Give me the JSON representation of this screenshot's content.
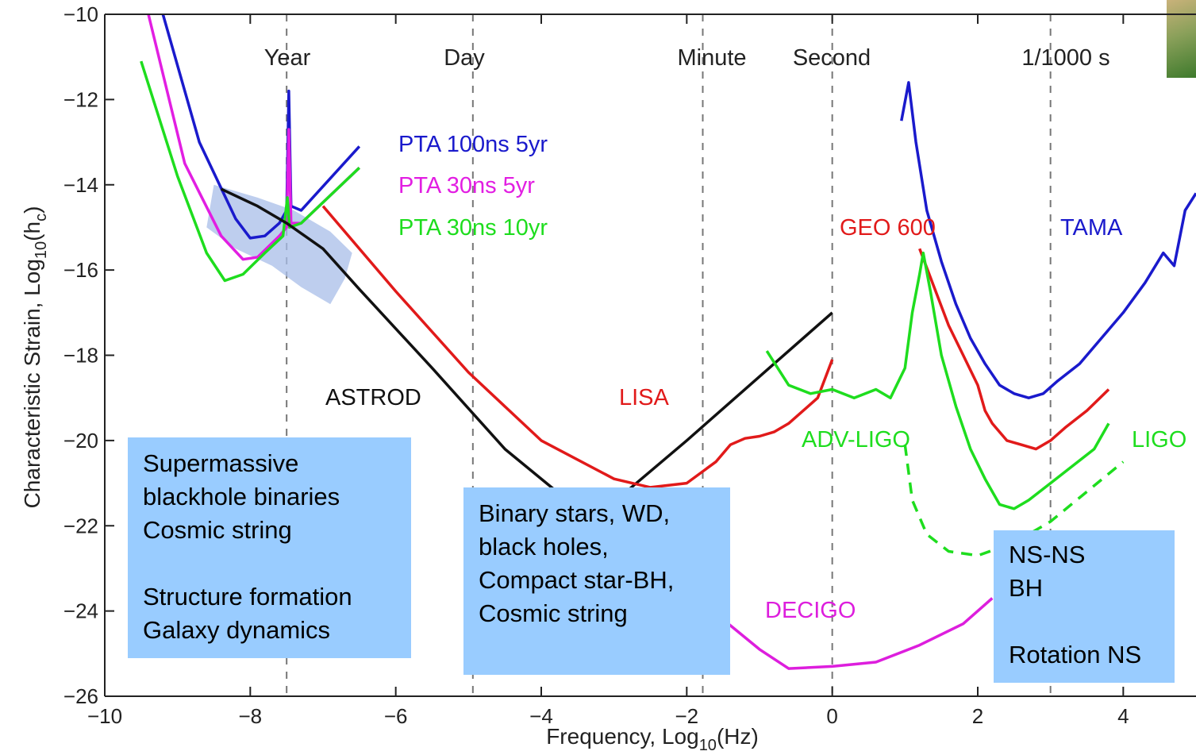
{
  "chart_data": {
    "type": "line",
    "xlabel": "Frequency, Log10(Hz)",
    "ylabel": "Characteristic Strain, Log10(hc)",
    "xlim": [
      -10,
      5
    ],
    "ylim": [
      -26,
      -10
    ],
    "x_ticks": [
      -10,
      -8,
      -6,
      -4,
      -2,
      0,
      2,
      4
    ],
    "y_ticks": [
      -26,
      -24,
      -22,
      -20,
      -18,
      -16,
      -14,
      -12,
      -10
    ],
    "time_markers": [
      {
        "label": "Year",
        "x": -7.5
      },
      {
        "label": "Day",
        "x": -4.94
      },
      {
        "label": "Minute",
        "x": -1.78
      },
      {
        "label": "Second",
        "x": 0
      },
      {
        "label": "1/1000 s",
        "x": 3
      }
    ],
    "series": [
      {
        "name": "PTA 100ns 5yr",
        "color": "#1a1acc",
        "points": [
          [
            -9.2,
            -10
          ],
          [
            -8.7,
            -13.0
          ],
          [
            -8.2,
            -14.8
          ],
          [
            -8.0,
            -15.25
          ],
          [
            -7.8,
            -15.2
          ],
          [
            -7.6,
            -14.9
          ],
          [
            -7.5,
            -14.6
          ],
          [
            -7.47,
            -11.8
          ],
          [
            -7.44,
            -14.5
          ],
          [
            -7.3,
            -14.6
          ],
          [
            -6.5,
            -13.1
          ]
        ]
      },
      {
        "name": "PTA 30ns 5yr",
        "color": "#e21ee2",
        "points": [
          [
            -9.4,
            -10
          ],
          [
            -8.9,
            -13.5
          ],
          [
            -8.4,
            -15.2
          ],
          [
            -8.1,
            -15.75
          ],
          [
            -7.9,
            -15.7
          ],
          [
            -7.6,
            -15.2
          ],
          [
            -7.5,
            -15.0
          ],
          [
            -7.47,
            -12.7
          ],
          [
            -7.44,
            -14.9
          ],
          [
            -7.3,
            -14.9
          ],
          [
            -6.5,
            -13.6
          ]
        ]
      },
      {
        "name": "PTA 30ns 10yr",
        "color": "#1edd1e",
        "points": [
          [
            -9.5,
            -11.1
          ],
          [
            -9.0,
            -13.8
          ],
          [
            -8.6,
            -15.6
          ],
          [
            -8.35,
            -16.25
          ],
          [
            -8.1,
            -16.1
          ],
          [
            -7.8,
            -15.6
          ],
          [
            -7.55,
            -15.2
          ],
          [
            -7.49,
            -14.3
          ],
          [
            -7.46,
            -15.0
          ],
          [
            -7.3,
            -14.9
          ],
          [
            -6.5,
            -13.6
          ]
        ]
      },
      {
        "name": "ASTROD",
        "color": "#111111",
        "points": [
          [
            -8.4,
            -14.1
          ],
          [
            -7.9,
            -14.5
          ],
          [
            -7.5,
            -14.9
          ],
          [
            -7.0,
            -15.5
          ],
          [
            -6.5,
            -16.45
          ],
          [
            -5.5,
            -18.3
          ],
          [
            -4.5,
            -20.2
          ],
          [
            -3.5,
            -21.6
          ],
          [
            -3.2,
            -21.9
          ],
          [
            -2.9,
            -21.3
          ],
          [
            -2.0,
            -20.0
          ],
          [
            -1.0,
            -18.5
          ],
          [
            0,
            -17.0
          ]
        ]
      },
      {
        "name": "LISA",
        "color": "#e11a1a",
        "points": [
          [
            -7.0,
            -14.5
          ],
          [
            -6.0,
            -16.5
          ],
          [
            -5.0,
            -18.4
          ],
          [
            -4.0,
            -20.0
          ],
          [
            -3.0,
            -20.9
          ],
          [
            -2.5,
            -21.1
          ],
          [
            -2.0,
            -21.0
          ],
          [
            -1.6,
            -20.5
          ],
          [
            -1.4,
            -20.1
          ],
          [
            -1.2,
            -19.95
          ],
          [
            -1.0,
            -19.9
          ],
          [
            -0.8,
            -19.8
          ],
          [
            -0.6,
            -19.6
          ],
          [
            -0.4,
            -19.3
          ],
          [
            -0.2,
            -19.0
          ],
          [
            0,
            -18.1
          ]
        ]
      },
      {
        "name": "DECIGO",
        "color": "#dd1edd",
        "points": [
          [
            -1.5,
            -24.2
          ],
          [
            -1.0,
            -24.9
          ],
          [
            -0.6,
            -25.35
          ],
          [
            0,
            -25.3
          ],
          [
            0.6,
            -25.2
          ],
          [
            1.2,
            -24.8
          ],
          [
            1.8,
            -24.3
          ],
          [
            2.2,
            -23.7
          ]
        ]
      },
      {
        "name": "GEO 600",
        "color": "#e11a1a",
        "points": [
          [
            1.2,
            -15.5
          ],
          [
            1.4,
            -16.4
          ],
          [
            1.6,
            -17.3
          ],
          [
            1.8,
            -18.0
          ],
          [
            2.0,
            -18.7
          ],
          [
            2.1,
            -19.3
          ],
          [
            2.2,
            -19.6
          ],
          [
            2.4,
            -20.0
          ],
          [
            2.6,
            -20.1
          ],
          [
            2.8,
            -20.2
          ],
          [
            3.0,
            -20.0
          ],
          [
            3.2,
            -19.7
          ],
          [
            3.5,
            -19.3
          ],
          [
            3.8,
            -18.8
          ]
        ]
      },
      {
        "name": "TAMA",
        "color": "#1a1acc",
        "points": [
          [
            0.95,
            -12.5
          ],
          [
            1.05,
            -11.6
          ],
          [
            1.15,
            -13.0
          ],
          [
            1.3,
            -14.6
          ],
          [
            1.5,
            -15.8
          ],
          [
            1.7,
            -16.8
          ],
          [
            1.9,
            -17.6
          ],
          [
            2.1,
            -18.2
          ],
          [
            2.3,
            -18.7
          ],
          [
            2.5,
            -18.9
          ],
          [
            2.7,
            -19.0
          ],
          [
            2.9,
            -18.9
          ],
          [
            3.1,
            -18.6
          ],
          [
            3.4,
            -18.2
          ],
          [
            3.7,
            -17.6
          ],
          [
            4.0,
            -17.0
          ],
          [
            4.3,
            -16.3
          ],
          [
            4.55,
            -15.6
          ],
          [
            4.7,
            -15.9
          ],
          [
            4.85,
            -14.6
          ],
          [
            5.0,
            -14.2
          ]
        ]
      },
      {
        "name": "ADV-LIGO",
        "color": "#1edd1e",
        "points": [
          [
            -0.9,
            -17.9
          ],
          [
            -0.6,
            -18.7
          ],
          [
            -0.3,
            -18.9
          ],
          [
            0,
            -18.8
          ],
          [
            0.3,
            -19.0
          ],
          [
            0.6,
            -18.8
          ],
          [
            0.8,
            -19.0
          ],
          [
            1.0,
            -18.3
          ],
          [
            1.1,
            -17.0
          ],
          [
            1.2,
            -16.1
          ],
          [
            1.25,
            -15.6
          ],
          [
            1.35,
            -16.5
          ],
          [
            1.5,
            -18.0
          ],
          [
            1.7,
            -19.2
          ],
          [
            1.9,
            -20.2
          ],
          [
            2.1,
            -20.9
          ],
          [
            2.3,
            -21.5
          ],
          [
            2.5,
            -21.6
          ],
          [
            2.7,
            -21.4
          ],
          [
            3.0,
            -21.0
          ],
          [
            3.3,
            -20.6
          ],
          [
            3.6,
            -20.2
          ],
          [
            3.8,
            -19.6
          ]
        ]
      },
      {
        "name": "LIGO",
        "color": "#1edd1e",
        "dashed": true,
        "points": [
          [
            1.0,
            -20.1
          ],
          [
            1.1,
            -21.4
          ],
          [
            1.3,
            -22.2
          ],
          [
            1.6,
            -22.6
          ],
          [
            2.0,
            -22.7
          ],
          [
            2.5,
            -22.4
          ],
          [
            3.0,
            -21.9
          ],
          [
            3.5,
            -21.2
          ],
          [
            4.0,
            -20.5
          ]
        ]
      }
    ],
    "region": {
      "name": "",
      "color": "#a8bde8",
      "points": [
        [
          -8.5,
          -14.0
        ],
        [
          -7.9,
          -14.3
        ],
        [
          -7.4,
          -14.6
        ],
        [
          -6.9,
          -15.1
        ],
        [
          -6.6,
          -15.6
        ],
        [
          -6.7,
          -16.2
        ],
        [
          -6.9,
          -16.8
        ],
        [
          -7.3,
          -16.4
        ],
        [
          -7.7,
          -15.9
        ],
        [
          -8.2,
          -15.5
        ],
        [
          -8.6,
          -15.0
        ]
      ]
    }
  },
  "series_labels": [
    {
      "text": "PTA 100ns 5yr",
      "color": "#1a1acc"
    },
    {
      "text": "PTA 30ns 5yr",
      "color": "#e21ee2"
    },
    {
      "text": "PTA 30ns 10yr",
      "color": "#1edd1e"
    },
    {
      "text": "ASTROD",
      "color": "#111111"
    },
    {
      "text": "LISA",
      "color": "#e11a1a"
    },
    {
      "text": "GEO 600",
      "color": "#e11a1a"
    },
    {
      "text": "TAMA",
      "color": "#1a1acc"
    },
    {
      "text": "ADV-LIGO",
      "color": "#1edd1e"
    },
    {
      "text": "LIGO",
      "color": "#1edd1e"
    },
    {
      "text": "DECIGO",
      "color": "#dd1edd"
    }
  ],
  "annotations": {
    "box1": [
      "Supermassive",
      "blackhole binaries",
      "Cosmic string",
      "",
      "Structure formation",
      "Galaxy dynamics"
    ],
    "box2": [
      "Binary stars, WD,",
      "black holes,",
      "Compact star-BH,",
      "Cosmic string"
    ],
    "box3": [
      "NS-NS",
      "BH",
      "",
      "Rotation NS"
    ]
  },
  "axis_text": {
    "xlabel_main": "Frequency, Log",
    "xlabel_sub": "10",
    "xlabel_end": "(Hz)",
    "ylabel_main": "Characteristic Strain, Log",
    "ylabel_sub": "10",
    "ylabel_mid": "(h",
    "ylabel_sub2": "c",
    "ylabel_end": ")"
  }
}
